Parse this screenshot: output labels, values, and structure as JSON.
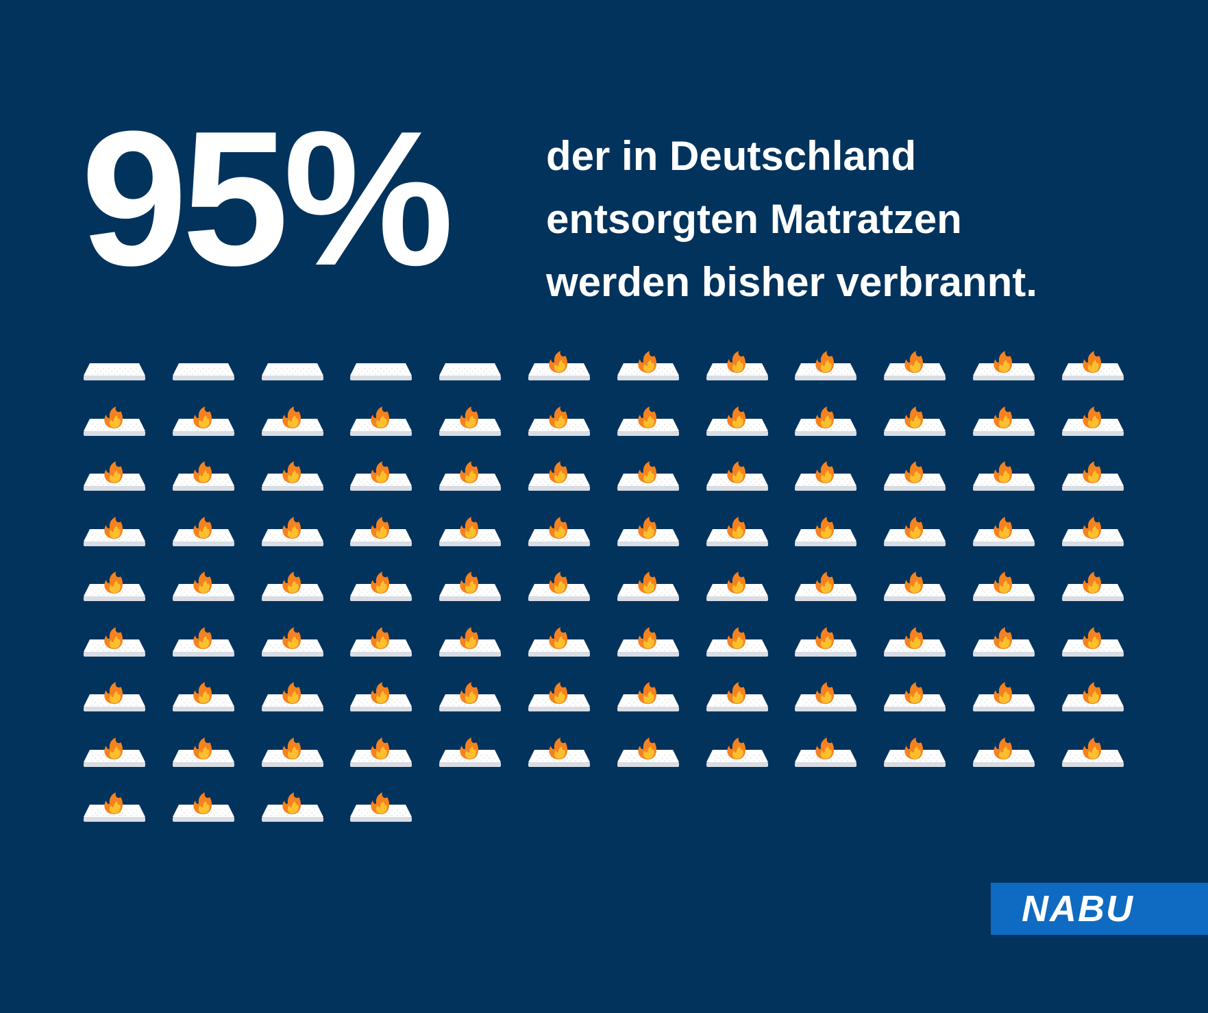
{
  "headline": {
    "big_number": "95%",
    "lines": [
      "der in Deutschland",
      "entsorgten Matratzen",
      "werden bisher verbrannt."
    ]
  },
  "pictogram": {
    "total_mattresses": 100,
    "burning_mattresses": 95,
    "not_burning_mattresses": 5,
    "burning_share_percent": 95,
    "icons": {
      "mattress": "mattress-icon",
      "fire": "fire-icon"
    }
  },
  "logo": {
    "text": "NABU"
  },
  "colors": {
    "background": "#02335d",
    "logo_bar": "#0f6bc1",
    "text": "#ffffff",
    "fire_outer": "#f5821f",
    "fire_inner": "#fbc02d",
    "mattress_top": "#ffffff",
    "mattress_side": "#d9dde3"
  }
}
